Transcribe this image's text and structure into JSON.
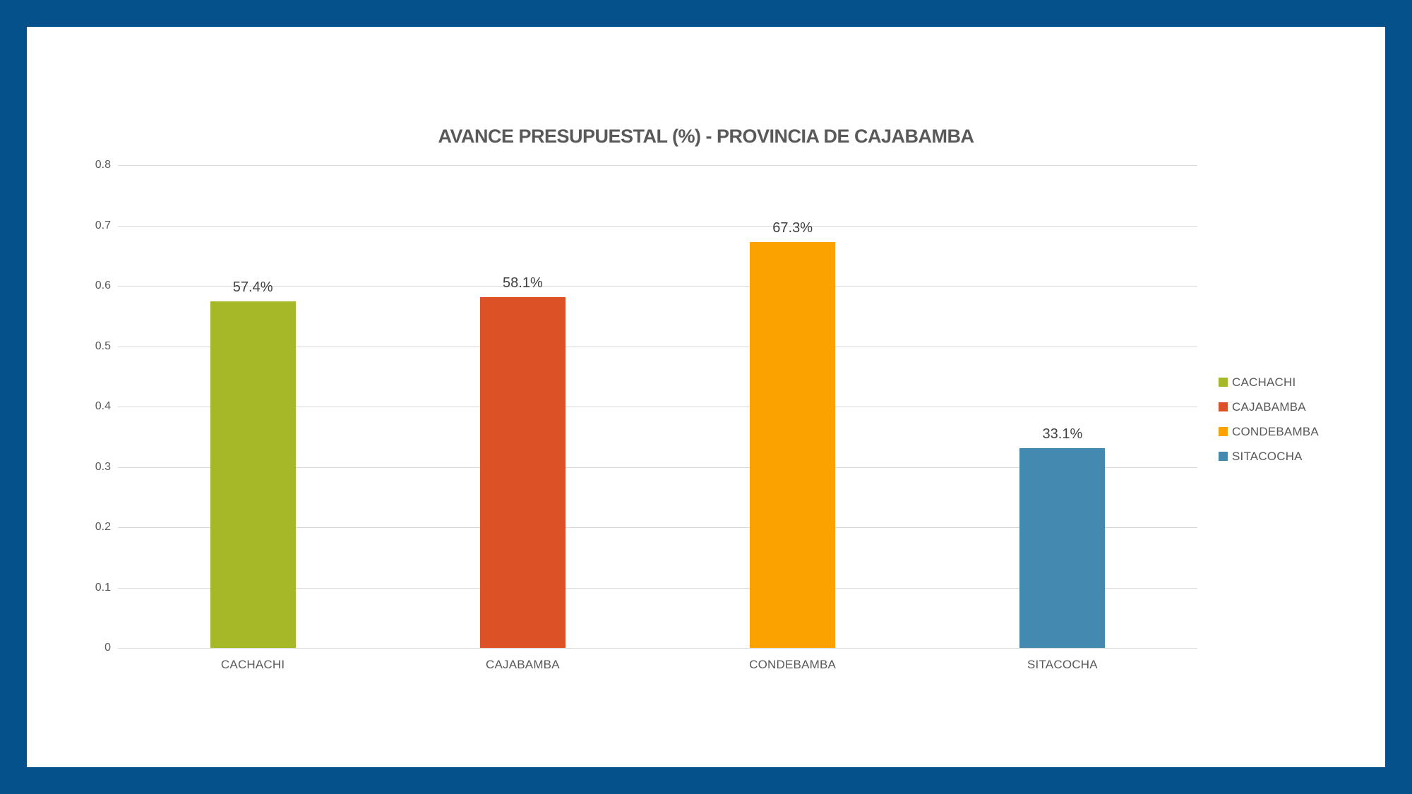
{
  "frame": {
    "border_color": "#04518C",
    "canvas_color": "#FFFFFF"
  },
  "text_colors": {
    "title": "#595959",
    "axis_labels": "#595959",
    "value_labels": "#404040"
  },
  "chart_data": {
    "type": "bar",
    "title": "AVANCE PRESUPUESTAL (%) - PROVINCIA DE CAJABAMBA",
    "categories": [
      "CACHACHI",
      "CAJABAMBA",
      "CONDEBAMBA",
      "SITACOCHA"
    ],
    "values": [
      0.574,
      0.581,
      0.673,
      0.331
    ],
    "value_labels": [
      "57.4%",
      "58.1%",
      "67.3%",
      "33.1%"
    ],
    "series_colors": [
      "#A6B727",
      "#DC5226",
      "#FBA100",
      "#4389B0"
    ],
    "xlabel": "",
    "ylabel": "",
    "ylim": [
      0,
      0.8
    ],
    "ytick_interval": 0.1,
    "ytick_labels": [
      "0",
      "0.1",
      "0.2",
      "0.3",
      "0.4",
      "0.5",
      "0.6",
      "0.7",
      "0.8"
    ],
    "grid": true,
    "gridline_color": "#D9D9D9",
    "legend": {
      "position": "right",
      "entries": [
        {
          "label": "CACHACHI",
          "color": "#A6B727"
        },
        {
          "label": "CAJABAMBA",
          "color": "#DC5226"
        },
        {
          "label": "CONDEBAMBA",
          "color": "#FBA100"
        },
        {
          "label": "SITACOCHA",
          "color": "#4389B0"
        }
      ]
    }
  }
}
